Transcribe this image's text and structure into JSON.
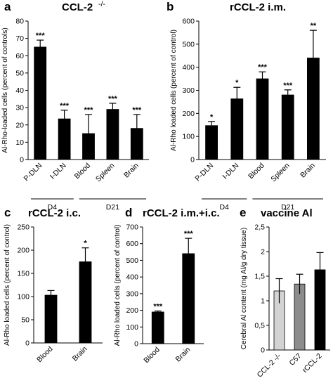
{
  "chart_data": [
    {
      "panel": "a",
      "type": "bar",
      "title": "CCL-2",
      "title_sup": "-/-",
      "ylabel": "Al-Rho-loaded cells (percent of controls)",
      "ylim": [
        0,
        80
      ],
      "yticks": [
        0,
        10,
        20,
        30,
        40,
        50,
        60,
        70,
        80
      ],
      "categories": [
        "P-DLN",
        "I-DLN",
        "Blood",
        "Spleen",
        "Brain"
      ],
      "values": [
        65,
        23.5,
        15,
        29,
        18
      ],
      "errors": [
        4,
        5,
        11,
        3.5,
        8
      ],
      "significance": [
        "***",
        "***",
        "***",
        "***",
        "***"
      ],
      "groups": [
        {
          "label": "D4",
          "span": [
            0,
            1
          ]
        },
        {
          "label": "D21",
          "span": [
            2,
            4
          ]
        }
      ],
      "bar_color": "#000000"
    },
    {
      "panel": "b",
      "type": "bar",
      "title": "rCCL-2 i.m.",
      "ylabel": "Al-Rho loaded cells (percent of control)",
      "ylim": [
        0,
        600
      ],
      "yticks": [
        0,
        100,
        200,
        300,
        400,
        500,
        600
      ],
      "categories": [
        "P-DLN",
        "I-DLN",
        "Blood",
        "Spleen",
        "Brain"
      ],
      "values": [
        147,
        263,
        350,
        280,
        440
      ],
      "errors": [
        18,
        50,
        30,
        22,
        120
      ],
      "significance": [
        "*",
        "*",
        "***",
        "***",
        "**"
      ],
      "groups": [
        {
          "label": "D4",
          "span": [
            0,
            1
          ]
        },
        {
          "label": "D21",
          "span": [
            2,
            4
          ]
        }
      ],
      "bar_color": "#000000"
    },
    {
      "panel": "c",
      "type": "bar",
      "title": "rCCL-2 i.c.",
      "ylabel": "Al-Rho loaded cells (percent of control)",
      "ylim": [
        0,
        250
      ],
      "yticks": [
        0,
        50,
        100,
        150,
        200,
        250
      ],
      "categories": [
        "Blood",
        "Brain"
      ],
      "values": [
        103,
        175
      ],
      "errors": [
        10,
        30
      ],
      "significance": [
        "",
        "*"
      ],
      "bar_color": "#000000"
    },
    {
      "panel": "d",
      "type": "bar",
      "title": "rCCL-2 i.m.+i.c.",
      "ylabel": "Al-Rho loaded cells  (percent of control)",
      "ylim": [
        0,
        700
      ],
      "yticks": [
        0,
        100,
        200,
        300,
        400,
        500,
        600,
        700
      ],
      "categories": [
        "Blood",
        "Brain"
      ],
      "values": [
        190,
        540
      ],
      "errors": [
        6,
        92
      ],
      "significance": [
        "***",
        "***"
      ],
      "bar_color": "#000000"
    },
    {
      "panel": "e",
      "type": "bar",
      "title": "vaccine Al",
      "ylabel": "Cerebral Al content (mg Al/g dry tissue)",
      "ylim": [
        0,
        2.5
      ],
      "yticks": [
        "0",
        "0,5",
        "1",
        "1,5",
        "2",
        "2,5"
      ],
      "ytick_values": [
        0,
        0.5,
        1,
        1.5,
        2,
        2.5
      ],
      "categories": [
        "CCL-2 -/-",
        "C57",
        "rCCL-2"
      ],
      "values": [
        1.2,
        1.34,
        1.63
      ],
      "errors": [
        0.25,
        0.2,
        0.35
      ],
      "significance": [
        "",
        "",
        ""
      ],
      "bar_colors": [
        "#d3d3d3",
        "#8c8c8c",
        "#000000"
      ]
    }
  ]
}
